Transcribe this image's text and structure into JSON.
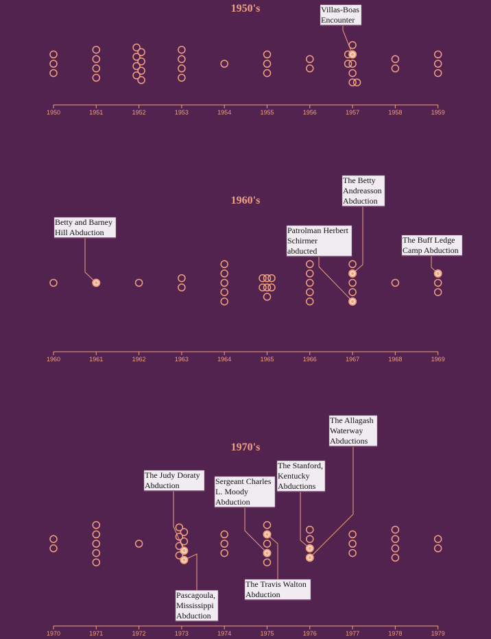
{
  "colors": {
    "background": "#52234f",
    "accent": "#f2a27f",
    "label_bg": "#f1ecf1"
  },
  "chart_data": [
    {
      "type": "scatter",
      "title": "1950's",
      "x": [
        "1950",
        "1951",
        "1952",
        "1953",
        "1954",
        "1955",
        "1956",
        "1957",
        "1958",
        "1959"
      ],
      "values": [
        3,
        4,
        8,
        4,
        1,
        3,
        2,
        8,
        2,
        3
      ],
      "grid": false,
      "annotations": [
        {
          "year": "1957",
          "label": "Villas-Boas Encounter"
        }
      ]
    },
    {
      "type": "scatter",
      "title": "1960's",
      "x": [
        "1960",
        "1961",
        "1962",
        "1963",
        "1964",
        "1965",
        "1966",
        "1967",
        "1968",
        "1969"
      ],
      "values": [
        1,
        1,
        1,
        2,
        5,
        7,
        5,
        5,
        1,
        3
      ],
      "grid": false,
      "annotations": [
        {
          "year": "1961",
          "label": "Betty and Barney Hill Abduction"
        },
        {
          "year": "1967",
          "label": "Patrolman Herbert Schirmer abducted"
        },
        {
          "year": "1967",
          "label": "The Betty Andreasson Abduction"
        },
        {
          "year": "1969",
          "label": "The Buff Ledge Camp Abduction"
        }
      ]
    },
    {
      "type": "scatter",
      "title": "1970's",
      "x": [
        "1970",
        "1971",
        "1972",
        "1973",
        "1974",
        "1975",
        "1976",
        "1977",
        "1978",
        "1979"
      ],
      "values": [
        2,
        5,
        1,
        8,
        3,
        5,
        4,
        3,
        4,
        2
      ],
      "grid": false,
      "annotations": [
        {
          "year": "1973",
          "label": "The Judy Doraty Abduction"
        },
        {
          "year": "1973",
          "label": "Pascagoula, Mississippi Abduction"
        },
        {
          "year": "1975",
          "label": "Sergeant Charles L. Moody Abduction"
        },
        {
          "year": "1975",
          "label": "The Travis Walton Abduction"
        },
        {
          "year": "1976",
          "label": "The Stanford, Kentucky Abductions"
        },
        {
          "year": "1976",
          "label": "The Allagash Waterway Abductions"
        }
      ]
    }
  ]
}
